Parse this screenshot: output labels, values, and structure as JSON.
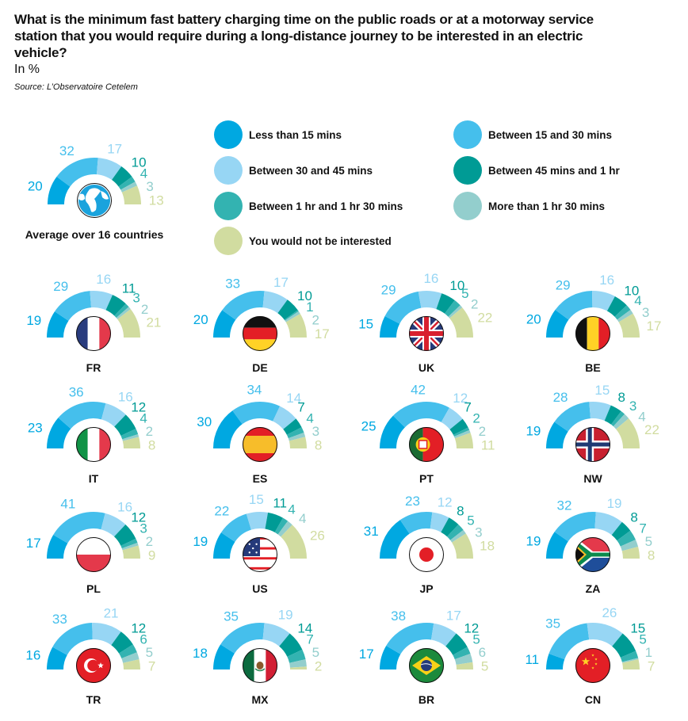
{
  "header": {
    "title": "What is the minimum fast battery charging time on the public roads or at a motorway service station that you would require during a long-distance journey to be interested in an electric vehicle?",
    "unit": "In %",
    "source": "Source: L’Observatoire Cetelem"
  },
  "chart_data": {
    "type": "gauge",
    "title": "What is the minimum fast battery charging time on the public roads or at a motorway service station that you would require during a long-distance journey to be interested in an electric vehicle?",
    "unit": "In %",
    "legend_position": "top-right",
    "categories": [
      {
        "name": "Less than 15 mins",
        "color": "#00a8e1"
      },
      {
        "name": "Between 15 and 30 mins",
        "color": "#45bfec"
      },
      {
        "name": "Between 30 and 45 mins",
        "color": "#97d6f4"
      },
      {
        "name": "Between 45 mins and 1 hr",
        "color": "#009b95"
      },
      {
        "name": "Between 1 hr and 1 hr 30 mins",
        "color": "#33b3b1"
      },
      {
        "name": "More than 1 hr 30 mins",
        "color": "#93cecd"
      },
      {
        "name": "You would not be interested",
        "color": "#d1dca0"
      }
    ],
    "average": {
      "label": "Average over 16 countries",
      "icon": "globe-icon",
      "values": [
        20,
        32,
        17,
        10,
        4,
        3,
        13
      ]
    },
    "countries": [
      {
        "code": "FR",
        "flag": "france-flag-icon",
        "values": [
          19,
          29,
          16,
          11,
          3,
          2,
          21
        ]
      },
      {
        "code": "DE",
        "flag": "germany-flag-icon",
        "values": [
          20,
          33,
          17,
          10,
          1,
          2,
          17
        ]
      },
      {
        "code": "UK",
        "flag": "uk-flag-icon",
        "values": [
          15,
          29,
          16,
          10,
          5,
          2,
          22
        ]
      },
      {
        "code": "BE",
        "flag": "belgium-flag-icon",
        "values": [
          20,
          29,
          16,
          10,
          4,
          3,
          17
        ]
      },
      {
        "code": "IT",
        "flag": "italy-flag-icon",
        "values": [
          23,
          36,
          16,
          12,
          4,
          2,
          8
        ]
      },
      {
        "code": "ES",
        "flag": "spain-flag-icon",
        "values": [
          30,
          34,
          14,
          7,
          4,
          3,
          8
        ]
      },
      {
        "code": "PT",
        "flag": "portugal-flag-icon",
        "values": [
          25,
          42,
          12,
          7,
          2,
          2,
          11
        ]
      },
      {
        "code": "NW",
        "flag": "norway-flag-icon",
        "values": [
          19,
          28,
          15,
          8,
          3,
          4,
          22
        ]
      },
      {
        "code": "PL",
        "flag": "poland-flag-icon",
        "values": [
          17,
          41,
          16,
          12,
          3,
          2,
          9
        ]
      },
      {
        "code": "US",
        "flag": "usa-flag-icon",
        "values": [
          19,
          22,
          15,
          11,
          4,
          4,
          26
        ]
      },
      {
        "code": "JP",
        "flag": "japan-flag-icon",
        "values": [
          31,
          23,
          12,
          8,
          5,
          3,
          18
        ]
      },
      {
        "code": "ZA",
        "flag": "south-africa-flag-icon",
        "values": [
          19,
          32,
          19,
          8,
          7,
          5,
          8
        ]
      },
      {
        "code": "TR",
        "flag": "turkey-flag-icon",
        "values": [
          16,
          33,
          21,
          12,
          6,
          5,
          7
        ]
      },
      {
        "code": "MX",
        "flag": "mexico-flag-icon",
        "values": [
          18,
          35,
          19,
          14,
          7,
          5,
          2
        ]
      },
      {
        "code": "BR",
        "flag": "brazil-flag-icon",
        "values": [
          17,
          38,
          17,
          12,
          5,
          6,
          5
        ]
      },
      {
        "code": "CN",
        "flag": "china-flag-icon",
        "values": [
          11,
          35,
          26,
          15,
          5,
          1,
          7
        ]
      }
    ]
  }
}
